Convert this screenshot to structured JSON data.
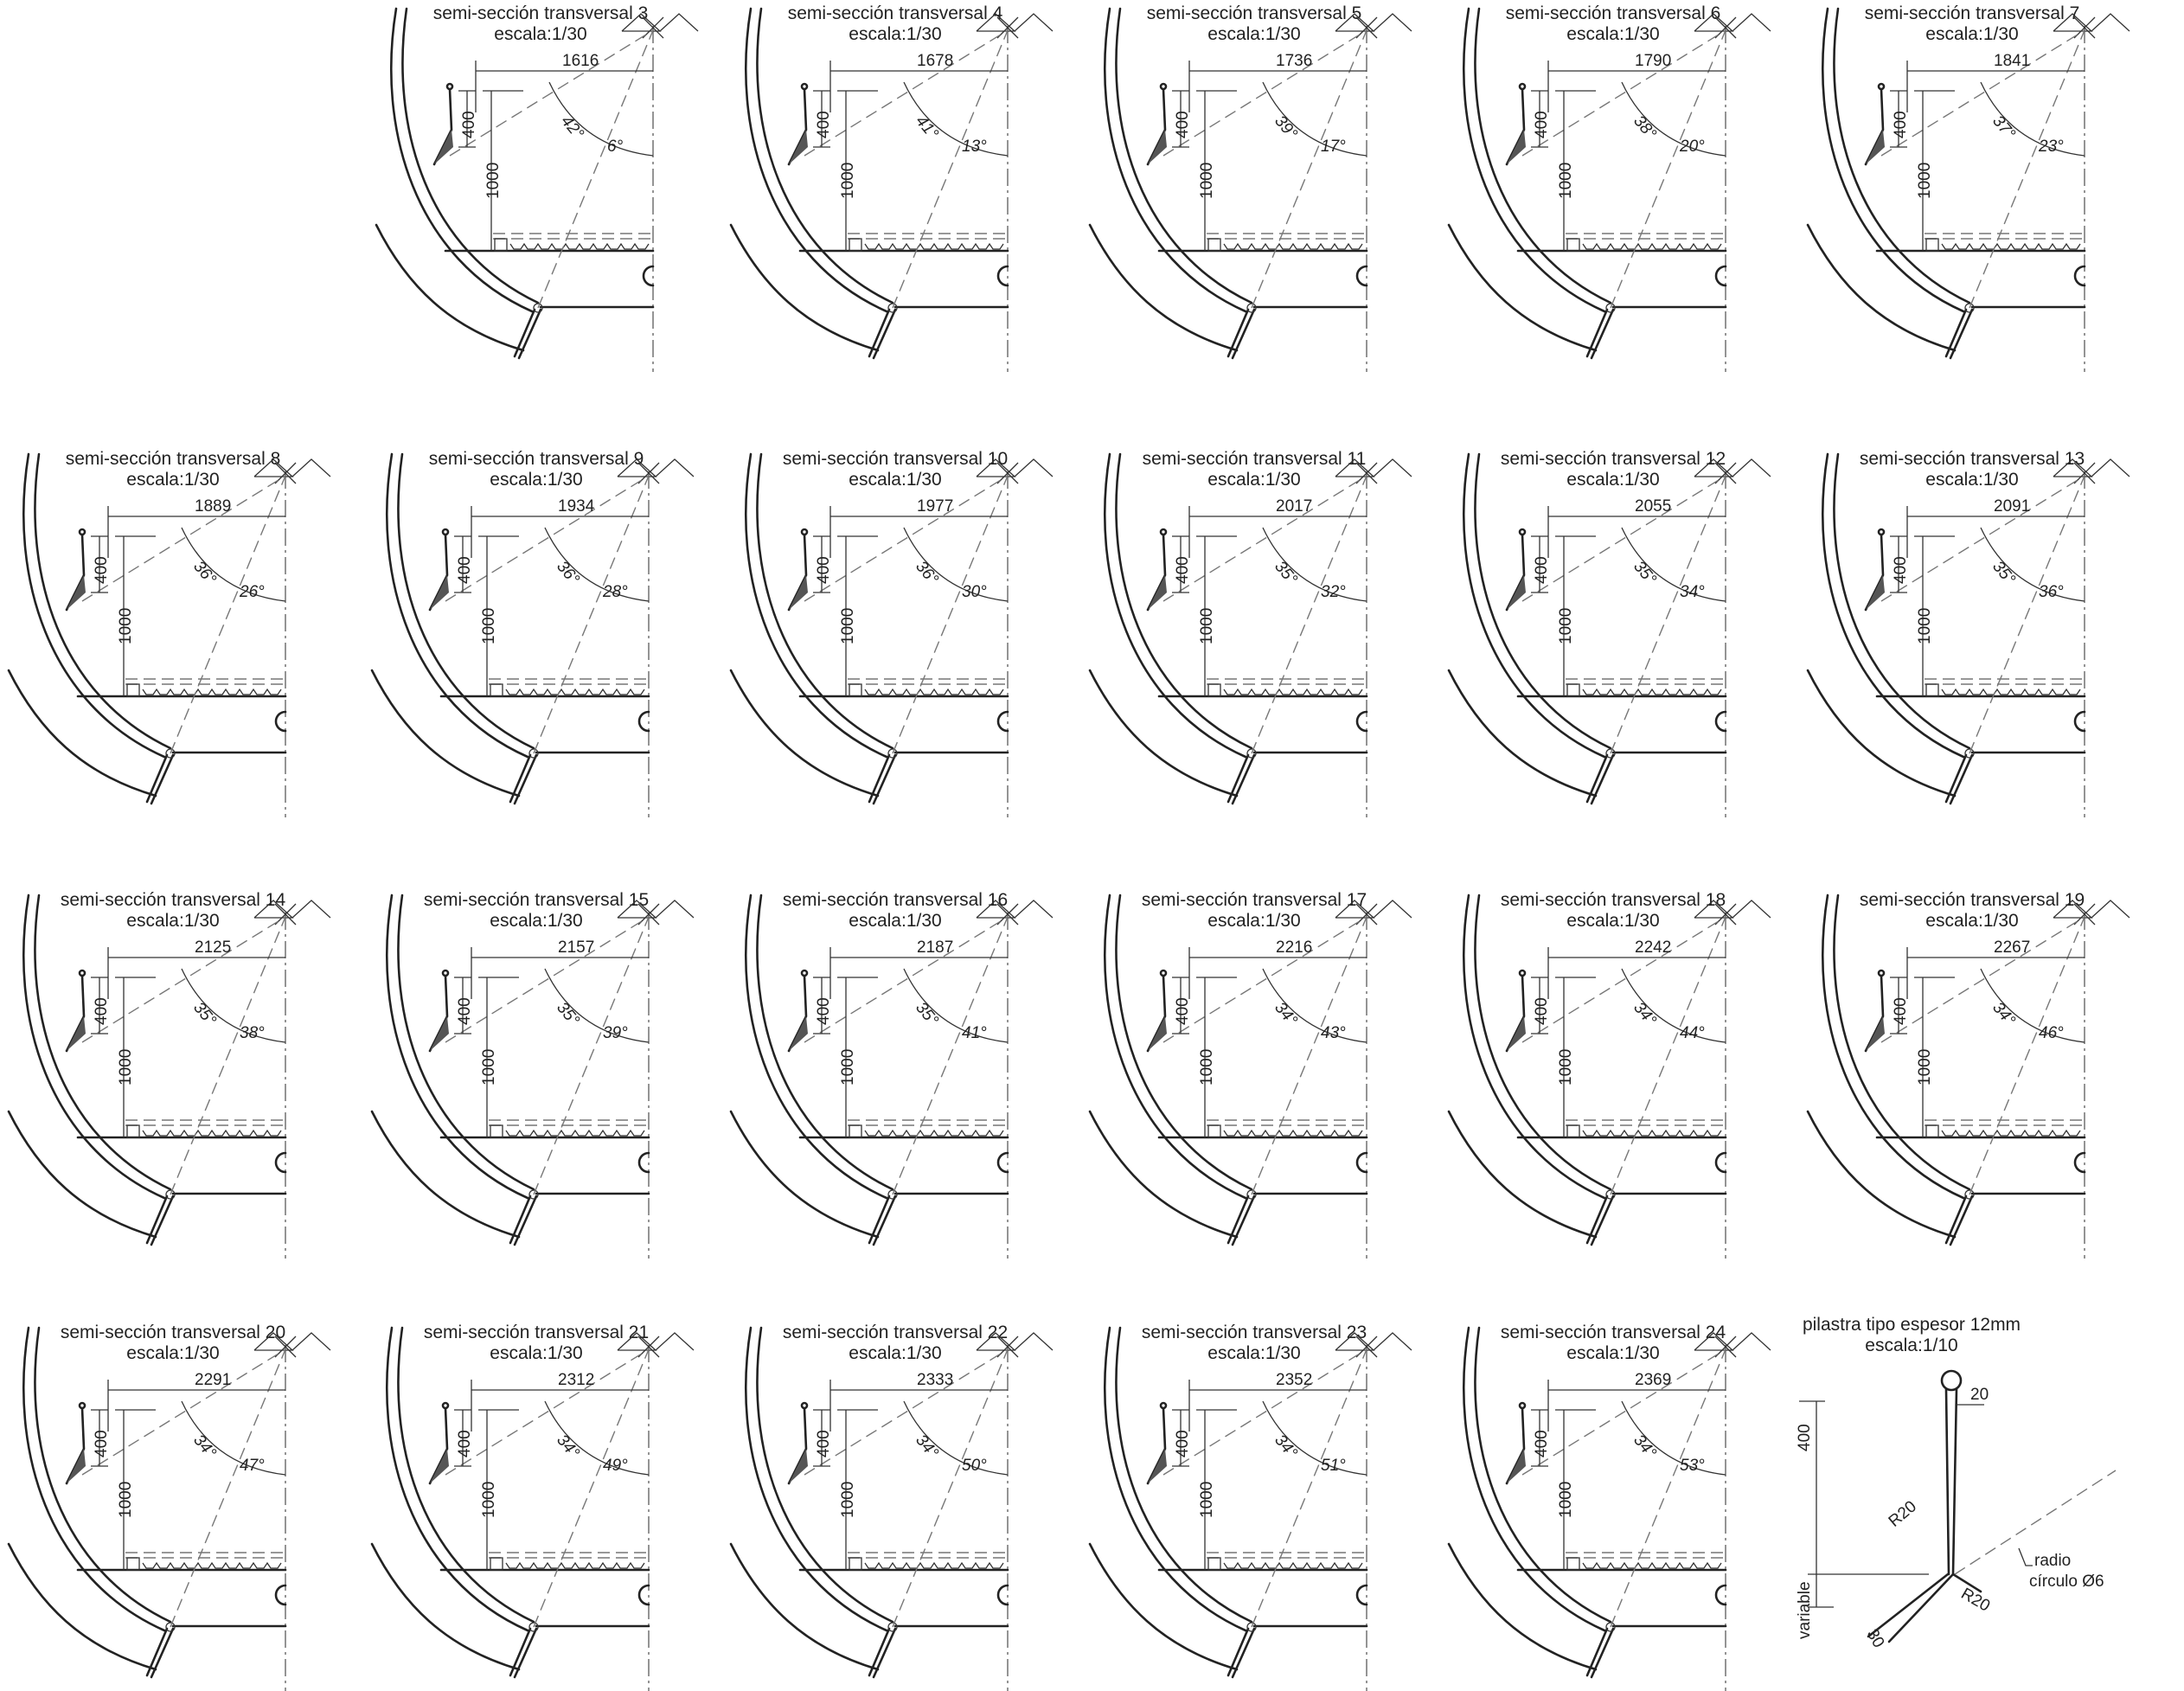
{
  "sections": [
    {
      "title": "semi-sección transversal 3",
      "scale": "escala:1/30",
      "width": "1616",
      "h_small": "400",
      "h_large": "1000",
      "angle_a": "42°",
      "angle_b": "6°"
    },
    {
      "title": "semi-sección transversal 4",
      "scale": "escala:1/30",
      "width": "1678",
      "h_small": "400",
      "h_large": "1000",
      "angle_a": "41°",
      "angle_b": "13°"
    },
    {
      "title": "semi-sección transversal 5",
      "scale": "escala:1/30",
      "width": "1736",
      "h_small": "400",
      "h_large": "1000",
      "angle_a": "39°",
      "angle_b": "17°"
    },
    {
      "title": "semi-sección transversal 6",
      "scale": "escala:1/30",
      "width": "1790",
      "h_small": "400",
      "h_large": "1000",
      "angle_a": "38°",
      "angle_b": "20°"
    },
    {
      "title": "semi-sección transversal 7",
      "scale": "escala:1/30",
      "width": "1841",
      "h_small": "400",
      "h_large": "1000",
      "angle_a": "37°",
      "angle_b": "23°"
    },
    {
      "title": "semi-sección transversal 8",
      "scale": "escala:1/30",
      "width": "1889",
      "h_small": "400",
      "h_large": "1000",
      "angle_a": "36°",
      "angle_b": "26°"
    },
    {
      "title": "semi-sección transversal 9",
      "scale": "escala:1/30",
      "width": "1934",
      "h_small": "400",
      "h_large": "1000",
      "angle_a": "36°",
      "angle_b": "28°"
    },
    {
      "title": "semi-sección transversal 10",
      "scale": "escala:1/30",
      "width": "1977",
      "h_small": "400",
      "h_large": "1000",
      "angle_a": "36°",
      "angle_b": "30°"
    },
    {
      "title": "semi-sección transversal 11",
      "scale": "escala:1/30",
      "width": "2017",
      "h_small": "400",
      "h_large": "1000",
      "angle_a": "35°",
      "angle_b": "32°"
    },
    {
      "title": "semi-sección transversal 12",
      "scale": "escala:1/30",
      "width": "2055",
      "h_small": "400",
      "h_large": "1000",
      "angle_a": "35°",
      "angle_b": "34°"
    },
    {
      "title": "semi-sección transversal 13",
      "scale": "escala:1/30",
      "width": "2091",
      "h_small": "400",
      "h_large": "1000",
      "angle_a": "35°",
      "angle_b": "36°"
    },
    {
      "title": "semi-sección transversal 14",
      "scale": "escala:1/30",
      "width": "2125",
      "h_small": "400",
      "h_large": "1000",
      "angle_a": "35°",
      "angle_b": "38°"
    },
    {
      "title": "semi-sección transversal 15",
      "scale": "escala:1/30",
      "width": "2157",
      "h_small": "400",
      "h_large": "1000",
      "angle_a": "35°",
      "angle_b": "39°"
    },
    {
      "title": "semi-sección transversal 16",
      "scale": "escala:1/30",
      "width": "2187",
      "h_small": "400",
      "h_large": "1000",
      "angle_a": "35°",
      "angle_b": "41°"
    },
    {
      "title": "semi-sección transversal 17",
      "scale": "escala:1/30",
      "width": "2216",
      "h_small": "400",
      "h_large": "1000",
      "angle_a": "34°",
      "angle_b": "43°"
    },
    {
      "title": "semi-sección transversal 18",
      "scale": "escala:1/30",
      "width": "2242",
      "h_small": "400",
      "h_large": "1000",
      "angle_a": "34°",
      "angle_b": "44°"
    },
    {
      "title": "semi-sección transversal 19",
      "scale": "escala:1/30",
      "width": "2267",
      "h_small": "400",
      "h_large": "1000",
      "angle_a": "34°",
      "angle_b": "46°"
    },
    {
      "title": "semi-sección transversal 20",
      "scale": "escala:1/30",
      "width": "2291",
      "h_small": "400",
      "h_large": "1000",
      "angle_a": "34°",
      "angle_b": "47°"
    },
    {
      "title": "semi-sección transversal 21",
      "scale": "escala:1/30",
      "width": "2312",
      "h_small": "400",
      "h_large": "1000",
      "angle_a": "34°",
      "angle_b": "49°"
    },
    {
      "title": "semi-sección transversal 22",
      "scale": "escala:1/30",
      "width": "2333",
      "h_small": "400",
      "h_large": "1000",
      "angle_a": "34°",
      "angle_b": "50°"
    },
    {
      "title": "semi-sección transversal 23",
      "scale": "escala:1/30",
      "width": "2352",
      "h_small": "400",
      "h_large": "1000",
      "angle_a": "34°",
      "angle_b": "51°"
    },
    {
      "title": "semi-sección transversal 24",
      "scale": "escala:1/30",
      "width": "2369",
      "h_small": "400",
      "h_large": "1000",
      "angle_a": "34°",
      "angle_b": "53°"
    }
  ],
  "pilastra": {
    "title": "pilastra tipo  espesor 12mm",
    "scale": "escala:1/10",
    "dim_400": "400",
    "dim_20": "20",
    "dim_r20_a": "R20",
    "dim_r20_b": "R20",
    "dim_variable": "variable",
    "dim_30": "30",
    "note_line1": "radio",
    "note_line2": "círculo Ø6"
  }
}
